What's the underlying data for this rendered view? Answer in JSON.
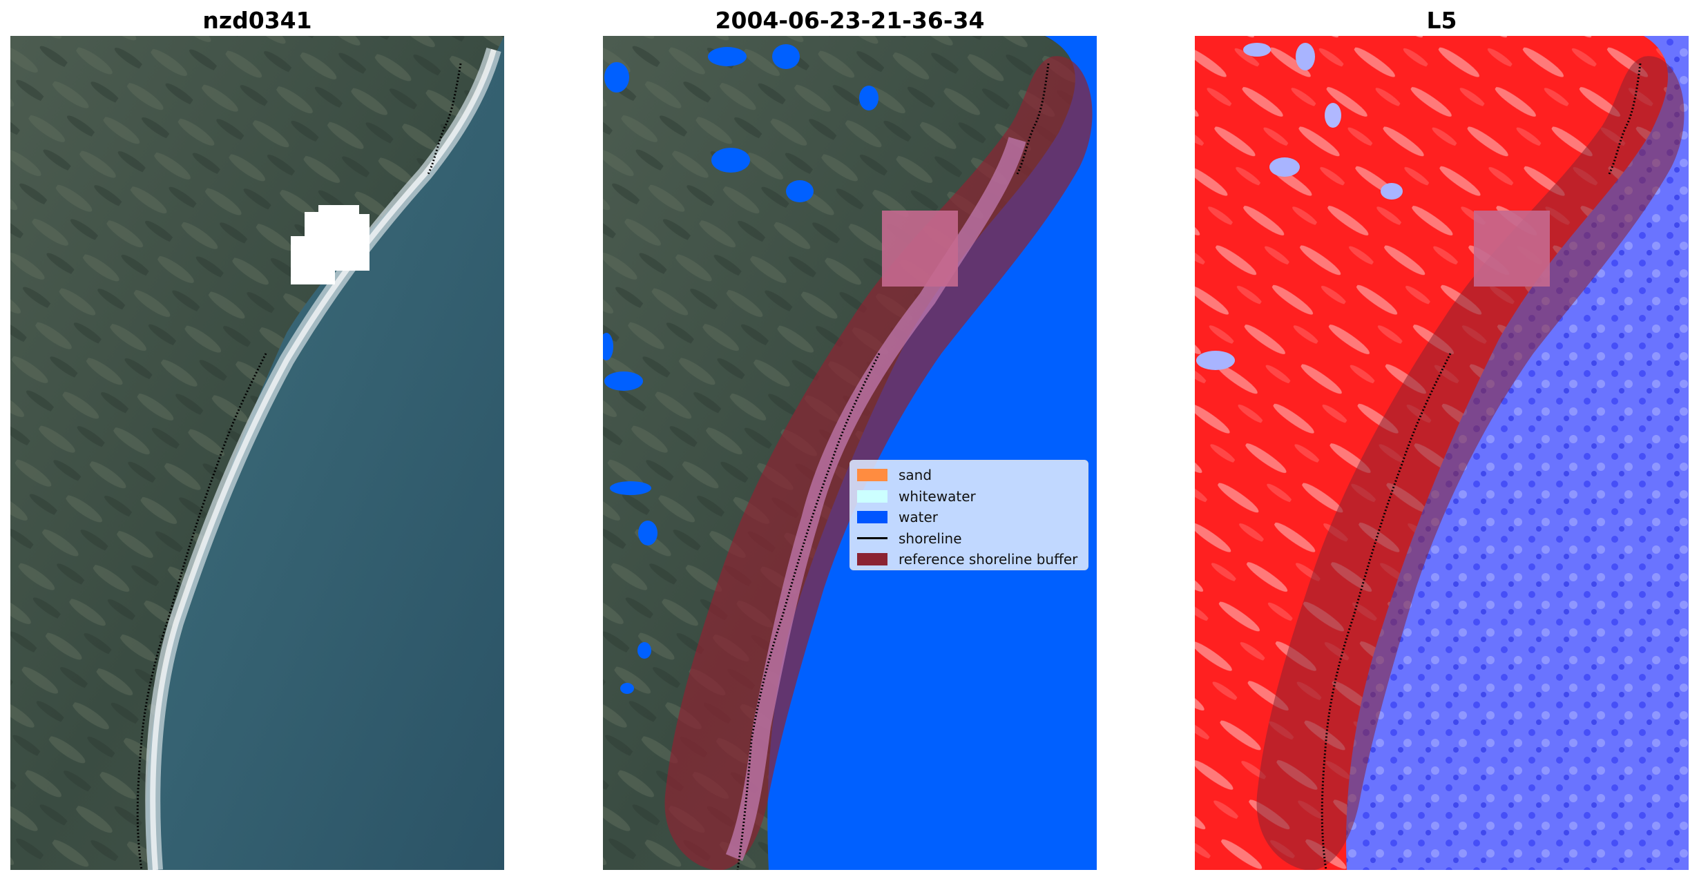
{
  "panels": [
    {
      "title": "nzd0341"
    },
    {
      "title": "2004-06-23-21-36-34"
    },
    {
      "title": "L5"
    }
  ],
  "legend": {
    "items": [
      {
        "label": "sand",
        "color": "#ff8c40"
      },
      {
        "label": "whitewater",
        "color": "#ccffff"
      },
      {
        "label": "water",
        "color": "#0055ff"
      },
      {
        "label": "shoreline",
        "color": "#000000"
      },
      {
        "label": "reference shoreline buffer",
        "color": "#8b2332"
      }
    ]
  },
  "colors": {
    "land": "#3e5448",
    "sea": "#2f5a6c",
    "water_class": "#0060ff",
    "buffer": "#8b2332",
    "index_land": "#ff2a2a",
    "index_water": "#6a70ff"
  }
}
